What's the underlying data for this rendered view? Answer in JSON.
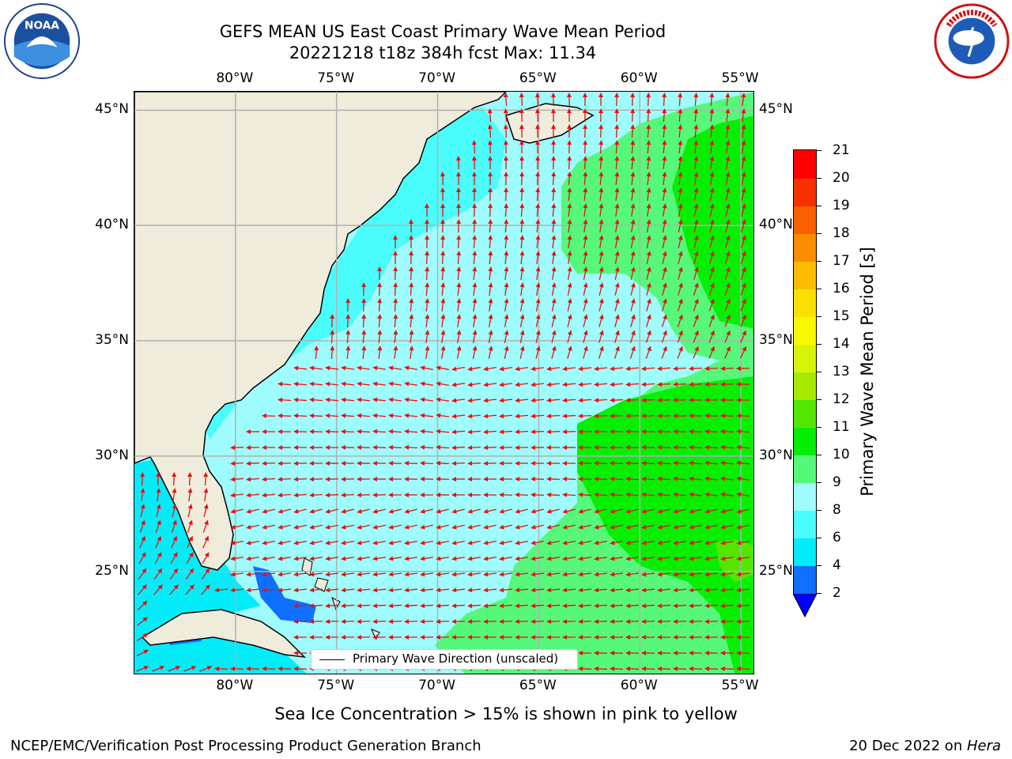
{
  "header": {
    "title_line1": "GEFS MEAN US East Coast Primary Wave Mean Period",
    "title_line2": "20221218 t18z 384h fcst   Max: 11.34"
  },
  "logos": {
    "noaa": {
      "name": "noaa-logo",
      "text": "NOAA",
      "ring_text": "NATIONAL OCEANIC AND ATMOSPHERIC ADMINISTRATION · U.S. DEPARTMENT OF COMMERCE"
    },
    "nws": {
      "name": "national-weather-service-logo",
      "ring_text": "NATIONAL WEATHER SERVICE"
    }
  },
  "map": {
    "lon_labels": [
      "80°W",
      "75°W",
      "70°W",
      "65°W",
      "60°W",
      "55°W"
    ],
    "lat_labels": [
      "45°N",
      "40°N",
      "35°N",
      "30°N",
      "25°N"
    ],
    "lon_values": [
      -80,
      -75,
      -70,
      -65,
      -60,
      -55
    ],
    "lat_values": [
      45,
      40,
      35,
      30,
      25
    ],
    "extent": {
      "lon_min": -85,
      "lon_max": -54.3,
      "lat_min": 20.5,
      "lat_max": 45.8
    },
    "legend_label": "Primary Wave Direction (unscaled)",
    "arrow_color": "#e8110f",
    "land_color": "#efecdc",
    "gridline_color": "#b0b0b0"
  },
  "colorbar": {
    "label": "Primary Wave Mean Period [s]",
    "ticks": [
      "2",
      "4",
      "6",
      "8",
      "9",
      "10",
      "11",
      "12",
      "13",
      "14",
      "15",
      "16",
      "17",
      "18",
      "19",
      "20",
      "21"
    ],
    "colors": [
      "#0f6fff",
      "#02ecf9",
      "#4afcfc",
      "#9ffcfd",
      "#55f87a",
      "#04ef04",
      "#54e603",
      "#a8e902",
      "#d6f30a",
      "#f8f800",
      "#fae000",
      "#fbbc02",
      "#fb8e00",
      "#f96100",
      "#f73000",
      "#ff0000"
    ],
    "extend_color": "#0000ff"
  },
  "subtitle": "Sea Ice Concentration > 15% is shown in pink to yellow",
  "footer": {
    "left": "NCEP/EMC/Verification Post Processing Product Generation Branch",
    "right_date": "20 Dec 2022 on ",
    "right_host": "Hera"
  }
}
